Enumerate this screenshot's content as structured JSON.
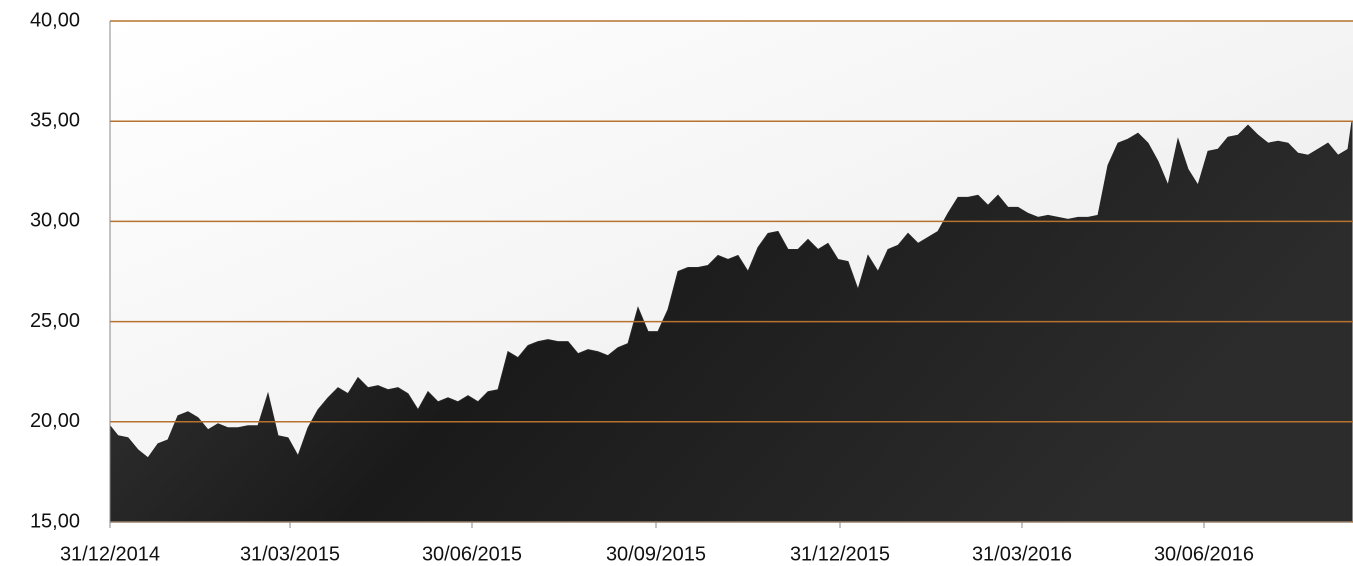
{
  "chart_data": {
    "type": "area",
    "color": "#262626",
    "grid_color": "#b5732f",
    "grid": true,
    "x": [
      "31/12/2014",
      "04/01/2015",
      "09/01/2015",
      "14/01/2015",
      "19/01/2015",
      "24/01/2015",
      "29/01/2015",
      "03/02/2015",
      "08/02/2015",
      "13/02/2015",
      "18/02/2015",
      "23/02/2015",
      "28/02/2015",
      "05/03/2015",
      "10/03/2015",
      "15/03/2015",
      "20/03/2015",
      "25/03/2015",
      "30/03/2015",
      "04/04/2015",
      "09/04/2015",
      "14/04/2015",
      "19/04/2015",
      "24/04/2015",
      "29/04/2015",
      "04/05/2015",
      "09/05/2015",
      "14/05/2015",
      "19/05/2015",
      "24/05/2015",
      "29/05/2015",
      "03/06/2015",
      "08/06/2015",
      "13/06/2015",
      "18/06/2015",
      "23/06/2015",
      "28/06/2015",
      "03/07/2015",
      "08/07/2015",
      "13/07/2015",
      "18/07/2015",
      "23/07/2015",
      "28/07/2015",
      "02/08/2015",
      "07/08/2015",
      "12/08/2015",
      "17/08/2015",
      "22/08/2015",
      "27/08/2015",
      "01/09/2015",
      "06/09/2015",
      "11/09/2015",
      "16/09/2015",
      "21/09/2015",
      "26/09/2015",
      "01/10/2015",
      "06/10/2015",
      "11/10/2015",
      "16/10/2015",
      "21/10/2015",
      "26/10/2015",
      "31/10/2015",
      "05/11/2015",
      "10/11/2015",
      "15/11/2015",
      "20/11/2015",
      "25/11/2015",
      "30/11/2015",
      "05/12/2015",
      "10/12/2015",
      "15/12/2015",
      "20/12/2015",
      "25/12/2015",
      "30/12/2015",
      "04/01/2016",
      "09/01/2016",
      "14/01/2016",
      "19/01/2016",
      "24/01/2016",
      "29/01/2016",
      "03/02/2016",
      "08/02/2016",
      "13/02/2016",
      "18/02/2016",
      "23/02/2016",
      "28/02/2016",
      "04/03/2016",
      "09/03/2016",
      "14/03/2016",
      "19/03/2016",
      "24/03/2016",
      "29/03/2016",
      "03/04/2016",
      "08/04/2016",
      "13/04/2016",
      "18/04/2016",
      "23/04/2016",
      "28/04/2016",
      "03/05/2016",
      "08/05/2016",
      "13/05/2016",
      "18/05/2016",
      "23/05/2016",
      "28/05/2016",
      "02/06/2016",
      "07/06/2016",
      "12/06/2016",
      "17/06/2016",
      "22/06/2016",
      "27/06/2016",
      "02/07/2016",
      "07/07/2016",
      "12/07/2016",
      "17/07/2016",
      "22/07/2016",
      "27/07/2016",
      "01/08/2016",
      "06/08/2016",
      "11/08/2016",
      "16/08/2016",
      "21/08/2016",
      "26/08/2016",
      "31/08/2016",
      "05/09/2016",
      "10/09/2016",
      "12/09/2016"
    ],
    "values": [
      19.8,
      19.3,
      19.2,
      18.6,
      18.2,
      18.9,
      19.1,
      20.3,
      20.5,
      20.2,
      19.6,
      19.9,
      19.7,
      19.7,
      19.8,
      19.8,
      21.4,
      19.3,
      19.2,
      18.3,
      19.7,
      20.6,
      21.2,
      21.7,
      21.4,
      22.2,
      21.7,
      21.8,
      21.6,
      21.7,
      21.4,
      20.6,
      21.5,
      21.0,
      21.2,
      21.0,
      21.3,
      21.0,
      21.5,
      21.6,
      23.5,
      23.2,
      23.8,
      24.0,
      24.1,
      24.0,
      24.0,
      23.4,
      23.6,
      23.5,
      23.3,
      23.7,
      23.9,
      25.7,
      24.5,
      24.5,
      25.6,
      27.5,
      27.7,
      27.7,
      27.8,
      28.3,
      28.1,
      28.3,
      27.5,
      28.7,
      29.4,
      29.5,
      28.6,
      28.6,
      29.1,
      28.6,
      28.9,
      28.1,
      28.0,
      26.6,
      28.3,
      27.5,
      28.6,
      28.8,
      29.4,
      28.9,
      29.2,
      29.5,
      30.4,
      31.2,
      31.2,
      31.3,
      30.8,
      31.3,
      30.7,
      30.7,
      30.4,
      30.2,
      30.3,
      30.2,
      30.1,
      30.2,
      30.2,
      30.3,
      32.8,
      33.9,
      34.1,
      34.4,
      33.9,
      33.0,
      31.8,
      34.1,
      32.6,
      31.8,
      33.5,
      33.6,
      34.2,
      34.3,
      34.8,
      34.3,
      33.9,
      34.0,
      33.9,
      33.4,
      33.3,
      33.6,
      33.9,
      33.3,
      33.6,
      35.0
    ],
    "xlim": [
      "31/12/2014",
      "12/09/2016"
    ],
    "xticks": [
      "31/12/2014",
      "31/03/2015",
      "30/06/2015",
      "30/09/2015",
      "31/12/2015",
      "31/03/2016",
      "30/06/2016"
    ],
    "ylim": [
      15,
      40
    ],
    "yticks": [
      {
        "value": 15,
        "label": "15,00"
      },
      {
        "value": 20,
        "label": "20,00"
      },
      {
        "value": 25,
        "label": "25,00"
      },
      {
        "value": 30,
        "label": "30,00"
      },
      {
        "value": 35,
        "label": "35,00"
      },
      {
        "value": 40,
        "label": "40,00"
      }
    ]
  }
}
